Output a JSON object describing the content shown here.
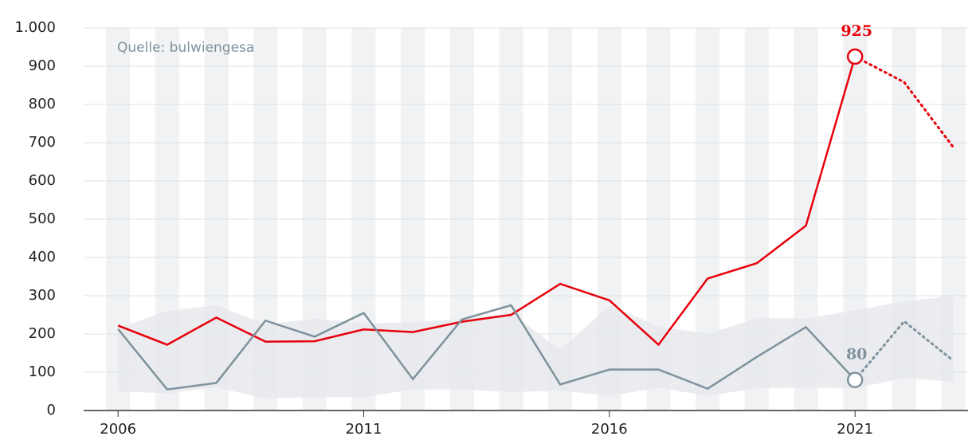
{
  "chart_data": {
    "type": "line",
    "annotation": "Quelle: bulwiengesa",
    "x": [
      2006,
      2007,
      2008,
      2009,
      2010,
      2011,
      2012,
      2013,
      2014,
      2015,
      2016,
      2017,
      2018,
      2019,
      2020,
      2021,
      2022,
      2023
    ],
    "series": [
      {
        "color": "#e8000b",
        "values": [
          222,
          172,
          243,
          180,
          181,
          212,
          205,
          232,
          250,
          331,
          288,
          172,
          345,
          385,
          483,
          925,
          858,
          688
        ]
      },
      {
        "color": "#7f929c",
        "values": [
          213,
          55,
          72,
          235,
          193,
          255,
          82,
          238,
          275,
          68,
          107,
          107,
          57,
          140,
          218,
          80,
          233,
          130
        ]
      }
    ],
    "band": {
      "color": "#e6e9ec",
      "upper": [
        215,
        260,
        275,
        225,
        240,
        228,
        230,
        240,
        255,
        158,
        275,
        220,
        200,
        242,
        240,
        262,
        285,
        300
      ],
      "lower": [
        50,
        45,
        60,
        32,
        35,
        35,
        55,
        55,
        48,
        52,
        38,
        60,
        38,
        58,
        60,
        58,
        85,
        75
      ]
    },
    "dotted_from": 2021,
    "label_at": 2021,
    "xlim": [
      2005.3,
      2023.3
    ],
    "xticks": [
      2006,
      2011,
      2016,
      2021
    ],
    "ylim": [
      0,
      1000
    ],
    "yticks": [
      0,
      100,
      200,
      300,
      400,
      500,
      600,
      700,
      800,
      900,
      {
        "value": 1000,
        "label": "1.000"
      }
    ],
    "grid": true
  }
}
